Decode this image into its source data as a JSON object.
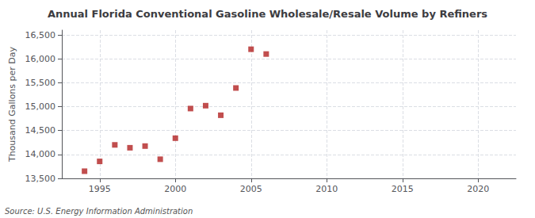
{
  "chart_data": {
    "type": "scatter",
    "title": "Annual Florida Conventional Gasoline Wholesale/Resale Volume by Refiners",
    "ylabel": "Thousand Gallons per Day",
    "annotation": "Source: U.S. Energy Information Administration",
    "x": [
      1994,
      1995,
      1996,
      1997,
      1998,
      1999,
      2000,
      2001,
      2002,
      2003,
      2004,
      2005,
      2006
    ],
    "values": [
      13650,
      13855,
      14200,
      14140,
      14175,
      13900,
      14340,
      14960,
      15020,
      14820,
      15390,
      16200,
      16100
    ],
    "color": "#b22222",
    "marker": "square",
    "xlim": [
      1992.5,
      2022.5
    ],
    "xticks": [
      1995,
      2000,
      2005,
      2010,
      2015,
      2020
    ],
    "ylim": [
      13500,
      16600
    ],
    "yticks": [
      {
        "value": 13500,
        "label": "13,500"
      },
      {
        "value": 14000,
        "label": "14,000"
      },
      {
        "value": 14500,
        "label": "14,500"
      },
      {
        "value": 15000,
        "label": "15,000"
      },
      {
        "value": 15500,
        "label": "15,500"
      },
      {
        "value": 16000,
        "label": "16,000"
      },
      {
        "value": 16500,
        "label": "16,500"
      }
    ],
    "grid": true
  }
}
